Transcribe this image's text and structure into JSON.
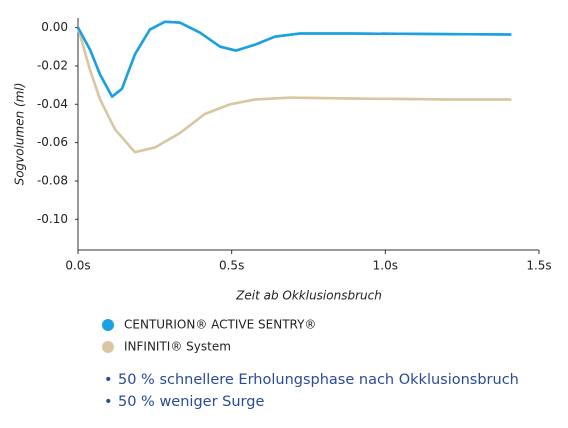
{
  "chart_data": {
    "type": "line",
    "xlabel": "Zeit ab Okklusionsbruch",
    "ylabel": "Sogvolumen (ml)",
    "xlim": [
      0,
      1.5
    ],
    "ylim": [
      -0.116,
      0.005
    ],
    "xticks": [
      {
        "value": 0,
        "label": "0.0s"
      },
      {
        "value": 0.5,
        "label": "0.5s"
      },
      {
        "value": 1.0,
        "label": "1.0s"
      },
      {
        "value": 1.5,
        "label": "1.5s"
      }
    ],
    "yticks": [
      {
        "value": 0,
        "label": "0.00"
      },
      {
        "value": -0.02,
        "label": "-0.02"
      },
      {
        "value": -0.04,
        "label": "-0.04"
      },
      {
        "value": -0.06,
        "label": "-0.06"
      },
      {
        "value": -0.08,
        "label": "-0.08"
      },
      {
        "value": -0.1,
        "label": "-0.10"
      }
    ],
    "series": [
      {
        "name": "CENTURION® ACTIVE SENTRY®",
        "color": "#1ba1e2",
        "x": [
          0,
          0.039,
          0.072,
          0.111,
          0.143,
          0.185,
          0.234,
          0.283,
          0.332,
          0.397,
          0.462,
          0.514,
          0.576,
          0.641,
          0.722,
          0.885,
          1.21,
          1.41
        ],
        "values": [
          0,
          -0.0115,
          -0.0245,
          -0.036,
          -0.032,
          -0.014,
          -0.001,
          0.003,
          0.0026,
          -0.0026,
          -0.0099,
          -0.012,
          -0.0089,
          -0.0047,
          -0.0031,
          -0.0031,
          -0.0034,
          -0.0036
        ]
      },
      {
        "name": "INFINITI® System",
        "color": "#d9c7a4",
        "x": [
          0,
          0.039,
          0.072,
          0.12,
          0.185,
          0.251,
          0.332,
          0.413,
          0.495,
          0.576,
          0.69,
          0.885,
          1.21,
          1.41
        ],
        "values": [
          0,
          -0.022,
          -0.0375,
          -0.053,
          -0.065,
          -0.0625,
          -0.055,
          -0.045,
          -0.04,
          -0.0375,
          -0.0365,
          -0.037,
          -0.0375,
          -0.0375
        ]
      }
    ]
  },
  "bullets": [
    "50 % schnellere Erholungsphase nach Okklusionsbruch",
    "50 % weniger Surge"
  ]
}
